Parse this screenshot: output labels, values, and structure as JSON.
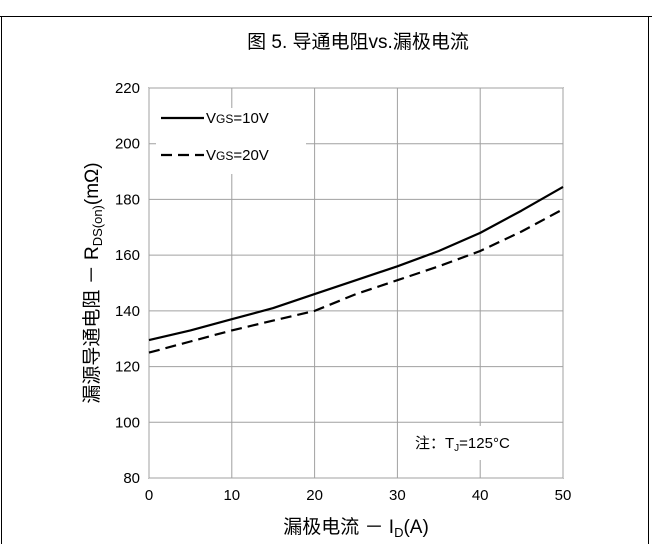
{
  "chart_data": {
    "type": "line",
    "title": "图 5. 导通电阻vs.漏极电流",
    "xlabel": {
      "prefix": "漏极电流 － I",
      "sub": "D",
      "suffix": "(A)"
    },
    "ylabel": {
      "prefix": "漏源导通电阻 － R",
      "sub": "DS(on)",
      "suffix": "(mΩ)"
    },
    "xlim": [
      0,
      50
    ],
    "ylim": [
      80,
      220
    ],
    "xticks": [
      0,
      10,
      20,
      30,
      40,
      50
    ],
    "yticks": [
      80,
      100,
      120,
      140,
      160,
      180,
      200,
      220
    ],
    "grid": true,
    "legend_position": "top-left",
    "note": {
      "prefix": "注：T",
      "sub": "J",
      "suffix": "=125°C"
    },
    "series": [
      {
        "name": "VGS=10V",
        "legend": {
          "prefix": "V",
          "sub": "GS",
          "suffix": "=10V"
        },
        "style": "solid",
        "x": [
          0,
          5,
          10,
          15,
          20,
          25,
          30,
          35,
          40,
          45,
          50
        ],
        "y": [
          129.5,
          133,
          137,
          141,
          146,
          151,
          156,
          161.5,
          168,
          176,
          184.5
        ]
      },
      {
        "name": "VGS=20V",
        "legend": {
          "prefix": "V",
          "sub": "GS",
          "suffix": "=20V"
        },
        "style": "dashed",
        "x": [
          0,
          5,
          10,
          15,
          20,
          25,
          30,
          35,
          40,
          45,
          50
        ],
        "y": [
          125,
          129,
          133,
          136.5,
          140,
          146,
          151,
          156,
          161.5,
          168.5,
          176.5
        ]
      }
    ]
  }
}
